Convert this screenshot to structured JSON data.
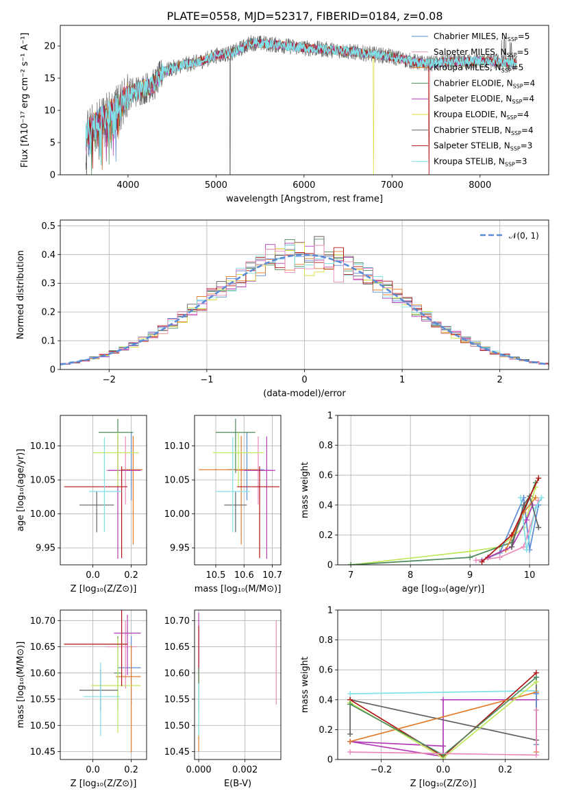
{
  "figure": {
    "title": "PLATE=0558, MJD=52317, FIBERID=0184, z=0.08"
  },
  "colors": {
    "C0": "#5a8bd6",
    "C1": "#e07b2a",
    "C2": "#4c8a5a",
    "C3": "#b13bb5",
    "C4": "#d8de3a",
    "C5": "#606060",
    "C6": "#b01010",
    "C7": "#7fe0e6",
    "C8": "#e98ab8",
    "C9": "#bfe85a",
    "gauss": "#5a8bd6"
  },
  "chart_data": [
    {
      "id": "spectrum",
      "type": "line",
      "xlabel": "wavelength [Angstrom, rest frame]",
      "ylabel": "Flux [fλ10⁻¹⁷ erg cm⁻² s⁻¹ A⁻¹]",
      "xlim": [
        3230,
        8780
      ],
      "ylim": [
        0,
        23.2
      ],
      "xticks": [
        4000,
        5000,
        6000,
        7000,
        8000
      ],
      "yticks": [
        0,
        5,
        10,
        15,
        20
      ],
      "legend_position": "top-right",
      "series": [
        {
          "name": "Chabrier MILES, N_SSP=5",
          "color": "#5a8bd6"
        },
        {
          "name": "Salpeter MILES, N_SSP=5",
          "color": "#e98ab8"
        },
        {
          "name": "Kroupa MILES, N_SSP=5",
          "color": "#e07b2a"
        },
        {
          "name": "Chabrier ELODIE, N_SSP=4",
          "color": "#4c8a5a"
        },
        {
          "name": "Salpeter ELODIE, N_SSP=4",
          "color": "#b13bb5"
        },
        {
          "name": "Kroupa ELODIE, N_SSP=4",
          "color": "#d8de3a"
        },
        {
          "name": "Chabrier STELIB, N_SSP=4",
          "color": "#606060"
        },
        {
          "name": "Salpeter STELIB, N_SSP=3",
          "color": "#b01010"
        },
        {
          "name": "Kroupa STELIB, N_SSP=3",
          "color": "#7fe0e6"
        }
      ],
      "continuum": {
        "x": [
          3520,
          3600,
          3700,
          3800,
          3900,
          4000,
          4100,
          4200,
          4300,
          4400,
          4600,
          4800,
          5000,
          5200,
          5400,
          5600,
          5800,
          6000,
          6200,
          6400,
          6600,
          6800,
          7000,
          7200,
          7400,
          7600,
          7800,
          8000,
          8200,
          8400
        ],
        "y": [
          6.0,
          7.5,
          8.5,
          9.5,
          10.5,
          12.5,
          13.0,
          13.5,
          14.0,
          16.0,
          17.0,
          17.5,
          18.5,
          19.0,
          20.5,
          20.3,
          20.0,
          19.7,
          19.5,
          19.3,
          19.0,
          18.7,
          18.3,
          17.7,
          17.2,
          17.5,
          17.5,
          17.7,
          17.5,
          17.3
        ]
      },
      "data_gaps": [
        {
          "x": 5160,
          "series": "Chabrier STELIB, N_SSP=4"
        },
        {
          "x": 6790,
          "series": "Kroupa ELODIE, N_SSP=4"
        },
        {
          "x": 7420,
          "series": "Salpeter STELIB, N_SSP=3"
        }
      ]
    },
    {
      "id": "residuals",
      "type": "line",
      "xlabel": "(data-model)/error",
      "ylabel": "Normed distribution",
      "xlim": [
        -2.5,
        2.5
      ],
      "ylim": [
        0,
        0.52
      ],
      "xticks": [
        -2,
        -1,
        0,
        1,
        2
      ],
      "yticks": [
        0.0,
        0.1,
        0.2,
        0.3,
        0.4,
        0.5
      ],
      "grid": true,
      "legend_position": "top-right",
      "gaussian": {
        "name": "𝒩(0, 1)",
        "mu": 0,
        "sigma": 1
      }
    },
    {
      "id": "age-vs-Z",
      "type": "scatter",
      "xlabel": "Z [log₁₀(Z/Z⊙)]",
      "ylabel": "age  [log₁₀(age/yr)]",
      "xlim": [
        -0.17,
        0.28
      ],
      "ylim": [
        9.925,
        10.145
      ],
      "xticks": [
        0.0,
        0.2
      ],
      "xtick_labels": [
        "0.0",
        "0.2"
      ],
      "yticks": [
        9.95,
        10.0,
        10.05,
        10.1
      ],
      "ytick_labels": [
        "9.95",
        "10.00",
        "10.05",
        "10.10"
      ],
      "grid": true,
      "points": [
        {
          "color": "#5a8bd6",
          "x": 0.2,
          "xerr": [
            0.05,
            0.05
          ],
          "y": 10.065,
          "yerr": [
            0.045,
            0.055
          ]
        },
        {
          "color": "#e98ab8",
          "x": 0.17,
          "xerr": [
            0.1,
            0.06
          ],
          "y": 10.064,
          "yerr": [
            0.05,
            0.05
          ]
        },
        {
          "color": "#e07b2a",
          "x": 0.21,
          "xerr": [
            0.06,
            0.05
          ],
          "y": 10.065,
          "yerr": [
            0.11,
            0.05
          ]
        },
        {
          "color": "#4c8a5a",
          "x": 0.13,
          "xerr": [
            0.1,
            0.08
          ],
          "y": 10.12,
          "yerr": [
            0.06,
            0.02
          ]
        },
        {
          "color": "#b13bb5",
          "x": 0.13,
          "xerr": [
            0.05,
            0.12
          ],
          "y": 10.064,
          "yerr": [
            0.13,
            0.05
          ]
        },
        {
          "color": "#bfe85a",
          "x": 0.13,
          "xerr": [
            0.13,
            0.11
          ],
          "y": 10.09,
          "yerr": [
            0.05,
            0.03
          ]
        },
        {
          "color": "#606060",
          "x": 0.02,
          "xerr": [
            0.09,
            0.09
          ],
          "y": 10.013,
          "yerr": [
            0.04,
            0.02
          ]
        },
        {
          "color": "#b01010",
          "x": 0.15,
          "xerr": [
            0.3,
            0.03
          ],
          "y": 10.04,
          "yerr": [
            0.105,
            0.03
          ]
        },
        {
          "color": "#7fe0e6",
          "x": 0.06,
          "xerr": [
            0.08,
            0.09
          ],
          "y": 10.033,
          "yerr": [
            0.06,
            0.08
          ]
        }
      ]
    },
    {
      "id": "age-vs-mass",
      "type": "scatter",
      "xlabel": "mass [log₁₀(M/M⊙)]",
      "ylabel": "",
      "xlim": [
        10.425,
        10.73
      ],
      "ylim": [
        9.925,
        10.145
      ],
      "xticks": [
        10.5,
        10.6,
        10.7
      ],
      "xtick_labels": [
        "10.5",
        "10.6",
        "10.7"
      ],
      "yticks": [
        9.95,
        10.0,
        10.05,
        10.1
      ],
      "ytick_labels": [
        "9.95",
        "10.00",
        "10.05",
        "10.10"
      ],
      "grid": true,
      "points": [
        {
          "color": "#5a8bd6",
          "x": 10.61,
          "xerr": [
            0.07,
            0.06
          ],
          "y": 10.065,
          "yerr": [
            0.045,
            0.055
          ]
        },
        {
          "color": "#e98ab8",
          "x": 10.65,
          "xerr": [
            0.08,
            0.05
          ],
          "y": 10.064,
          "yerr": [
            0.05,
            0.05
          ]
        },
        {
          "color": "#e07b2a",
          "x": 10.59,
          "xerr": [
            0.15,
            0.06
          ],
          "y": 10.065,
          "yerr": [
            0.11,
            0.05
          ]
        },
        {
          "color": "#4c8a5a",
          "x": 10.57,
          "xerr": [
            0.07,
            0.07
          ],
          "y": 10.12,
          "yerr": [
            0.06,
            0.02
          ]
        },
        {
          "color": "#b13bb5",
          "x": 10.68,
          "xerr": [
            0.08,
            0.03
          ],
          "y": 10.064,
          "yerr": [
            0.13,
            0.05
          ]
        },
        {
          "color": "#bfe85a",
          "x": 10.58,
          "xerr": [
            0.09,
            0.09
          ],
          "y": 10.09,
          "yerr": [
            0.05,
            0.03
          ]
        },
        {
          "color": "#606060",
          "x": 10.57,
          "xerr": [
            0.04,
            0.04
          ],
          "y": 10.013,
          "yerr": [
            0.04,
            0.02
          ]
        },
        {
          "color": "#b01010",
          "x": 10.655,
          "xerr": [
            0.08,
            0.07
          ],
          "y": 10.04,
          "yerr": [
            0.105,
            0.03
          ]
        },
        {
          "color": "#7fe0e6",
          "x": 10.56,
          "xerr": [
            0.06,
            0.06
          ],
          "y": 10.033,
          "yerr": [
            0.06,
            0.08
          ]
        }
      ]
    },
    {
      "id": "mass-weight-vs-age",
      "type": "line",
      "xlabel": "age  [log₁₀(age/yr)]",
      "ylabel": "mass weight",
      "xlim": [
        6.78,
        10.32
      ],
      "ylim": [
        0,
        1.0
      ],
      "xticks": [
        7,
        8,
        9,
        10
      ],
      "yticks": [
        0.0,
        0.2,
        0.4,
        0.6,
        0.8,
        1.0
      ],
      "grid": true,
      "series": [
        {
          "color": "#bfe85a",
          "x": [
            7.0,
            9.0,
            9.5,
            9.9,
            10.1
          ],
          "y": [
            0.0,
            0.09,
            0.12,
            0.25,
            0.52
          ]
        },
        {
          "color": "#4c8a5a",
          "x": [
            7.0,
            9.0,
            9.7,
            10.1
          ],
          "y": [
            0.0,
            0.05,
            0.15,
            0.55
          ]
        },
        {
          "color": "#5a8bd6",
          "x": [
            9.2,
            9.5,
            9.9,
            10.0,
            10.15
          ],
          "y": [
            0.03,
            0.08,
            0.45,
            0.1,
            0.4
          ]
        },
        {
          "color": "#e07b2a",
          "x": [
            9.3,
            9.6,
            9.9,
            10.1
          ],
          "y": [
            0.05,
            0.1,
            0.35,
            0.45
          ]
        },
        {
          "color": "#b13bb5",
          "x": [
            9.3,
            9.7,
            9.95,
            10.05
          ],
          "y": [
            0.05,
            0.12,
            0.3,
            0.4
          ]
        },
        {
          "color": "#e98ab8",
          "x": [
            9.1,
            9.5,
            9.9,
            10.15
          ],
          "y": [
            0.03,
            0.05,
            0.12,
            0.43
          ]
        },
        {
          "color": "#7fe0e6",
          "x": [
            9.85,
            9.95,
            10.1,
            10.2
          ],
          "y": [
            0.45,
            0.1,
            0.38,
            0.45
          ]
        },
        {
          "color": "#606060",
          "x": [
            9.7,
            9.9,
            10.0,
            10.15
          ],
          "y": [
            0.12,
            0.4,
            0.46,
            0.25
          ]
        },
        {
          "color": "#b01010",
          "x": [
            9.2,
            9.7,
            10.15
          ],
          "y": [
            0.02,
            0.2,
            0.58
          ]
        }
      ]
    },
    {
      "id": "mass-vs-Z",
      "type": "scatter",
      "xlabel": "Z [log₁₀(Z/Z⊙)]",
      "ylabel": "mass [log₁₀(M/M⊙)]",
      "xlim": [
        -0.17,
        0.28
      ],
      "ylim": [
        10.435,
        10.72
      ],
      "xticks": [
        0.0,
        0.2
      ],
      "xtick_labels": [
        "0.0",
        "0.2"
      ],
      "yticks": [
        10.45,
        10.5,
        10.55,
        10.6,
        10.65,
        10.7
      ],
      "ytick_labels": [
        "10.45",
        "10.50",
        "10.55",
        "10.60",
        "10.65",
        "10.70"
      ],
      "grid": true,
      "points": [
        {
          "color": "#5a8bd6",
          "x": 0.2,
          "xerr": [
            0.07,
            0.05
          ],
          "y": 10.61,
          "yerr": [
            0.07,
            0.06
          ]
        },
        {
          "color": "#e98ab8",
          "x": 0.17,
          "xerr": [
            0.1,
            0.06
          ],
          "y": 10.65,
          "yerr": [
            0.08,
            0.05
          ]
        },
        {
          "color": "#e07b2a",
          "x": 0.2,
          "xerr": [
            0.08,
            0.05
          ],
          "y": 10.593,
          "yerr": [
            0.145,
            0.06
          ]
        },
        {
          "color": "#4c8a5a",
          "x": 0.13,
          "xerr": [
            0.02,
            0.02
          ],
          "y": 10.6,
          "yerr": [
            0.07,
            0.07
          ]
        },
        {
          "color": "#b13bb5",
          "x": 0.18,
          "xerr": [
            0.07,
            0.07
          ],
          "y": 10.676,
          "yerr": [
            0.08,
            0.035
          ]
        },
        {
          "color": "#bfe85a",
          "x": 0.13,
          "xerr": [
            0.14,
            0.12
          ],
          "y": 10.576,
          "yerr": [
            0.09,
            0.09
          ]
        },
        {
          "color": "#606060",
          "x": 0.04,
          "xerr": [
            0.11,
            0.09
          ],
          "y": 10.567,
          "yerr": [
            0.04,
            0.04
          ]
        },
        {
          "color": "#b01010",
          "x": 0.15,
          "xerr": [
            0.3,
            0.03
          ],
          "y": 10.655,
          "yerr": [
            0.08,
            0.07
          ]
        },
        {
          "color": "#7fe0e6",
          "x": 0.04,
          "xerr": [
            0.09,
            0.1
          ],
          "y": 10.555,
          "yerr": [
            0.075,
            0.065
          ]
        }
      ]
    },
    {
      "id": "mass-vs-ebv",
      "type": "scatter",
      "xlabel": "E(B-V)",
      "ylabel": "",
      "xlim": [
        -0.00018,
        0.00355
      ],
      "ylim": [
        10.435,
        10.72
      ],
      "xticks": [
        0.0,
        0.002
      ],
      "xtick_labels": [
        "0.000",
        "0.002"
      ],
      "yticks": [
        10.45,
        10.5,
        10.55,
        10.6,
        10.65,
        10.7
      ],
      "ytick_labels": [
        "10.45",
        "10.50",
        "10.55",
        "10.60",
        "10.65",
        "10.70"
      ],
      "grid": true,
      "points": [
        {
          "color": "#e07b2a",
          "x": 0.0,
          "y": 10.55,
          "yerr": [
            0.1,
            0.05
          ]
        },
        {
          "color": "#b13bb5",
          "x": 0.0,
          "y": 10.68,
          "yerr": [
            0.08,
            0.035
          ]
        },
        {
          "color": "#b01010",
          "x": 0.0,
          "y": 10.66,
          "yerr": [
            0.08,
            0.03
          ]
        },
        {
          "color": "#4c8a5a",
          "x": 0.0,
          "y": 10.58,
          "yerr": [
            0.05,
            0.03
          ]
        },
        {
          "color": "#7fe0e6",
          "x": 0.0,
          "y": 10.53,
          "yerr": [
            0.05,
            0.05
          ]
        },
        {
          "color": "#e98ab8",
          "x": 0.00335,
          "y": 10.62,
          "yerr": [
            0.08,
            0.08
          ]
        }
      ]
    },
    {
      "id": "mass-weight-vs-Z",
      "type": "line",
      "xlabel": "Z [log₁₀(Z/Z⊙)]",
      "ylabel": "mass weight",
      "xlim": [
        -0.34,
        0.34
      ],
      "ylim": [
        0,
        1.0
      ],
      "xticks": [
        -0.2,
        0.0,
        0.2
      ],
      "xtick_labels": [
        "−0.2",
        "0.0",
        "0.2"
      ],
      "yticks": [
        0.0,
        0.2,
        0.4,
        0.6,
        0.8,
        1.0
      ],
      "grid": true,
      "series": [
        {
          "color": "#7fe0e6",
          "x": [
            -0.3,
            0.3,
            0.3
          ],
          "y": [
            0.44,
            0.46,
            0.1
          ]
        },
        {
          "color": "#b13bb5",
          "x": [
            0.3,
            0.0,
            0.0,
            -0.3,
            -0.3,
            0.0
          ],
          "y": [
            0.4,
            0.4,
            0.02,
            0.12,
            0.12,
            0.09
          ]
        },
        {
          "color": "#606060",
          "x": [
            -0.3,
            -0.3,
            0.3,
            0.3
          ],
          "y": [
            0.17,
            0.4,
            0.13,
            0.55
          ]
        },
        {
          "color": "#b01010",
          "x": [
            -0.3,
            0.0,
            0.3
          ],
          "y": [
            0.4,
            0.02,
            0.58
          ]
        },
        {
          "color": "#e07b2a",
          "x": [
            -0.3,
            0.3,
            0.3
          ],
          "y": [
            0.12,
            0.45,
            0.05
          ]
        },
        {
          "color": "#bfe85a",
          "x": [
            -0.3,
            0.0,
            0.3
          ],
          "y": [
            0.38,
            0.01,
            0.52
          ]
        },
        {
          "color": "#4c8a5a",
          "x": [
            -0.3,
            0.0,
            0.3
          ],
          "y": [
            0.37,
            0.03,
            0.55
          ]
        },
        {
          "color": "#5a8bd6",
          "x": [
            0.3,
            0.3
          ],
          "y": [
            0.44,
            0.1
          ]
        },
        {
          "color": "#e98ab8",
          "x": [
            -0.3,
            0.3,
            0.3
          ],
          "y": [
            0.05,
            0.03,
            0.33
          ]
        }
      ]
    }
  ]
}
